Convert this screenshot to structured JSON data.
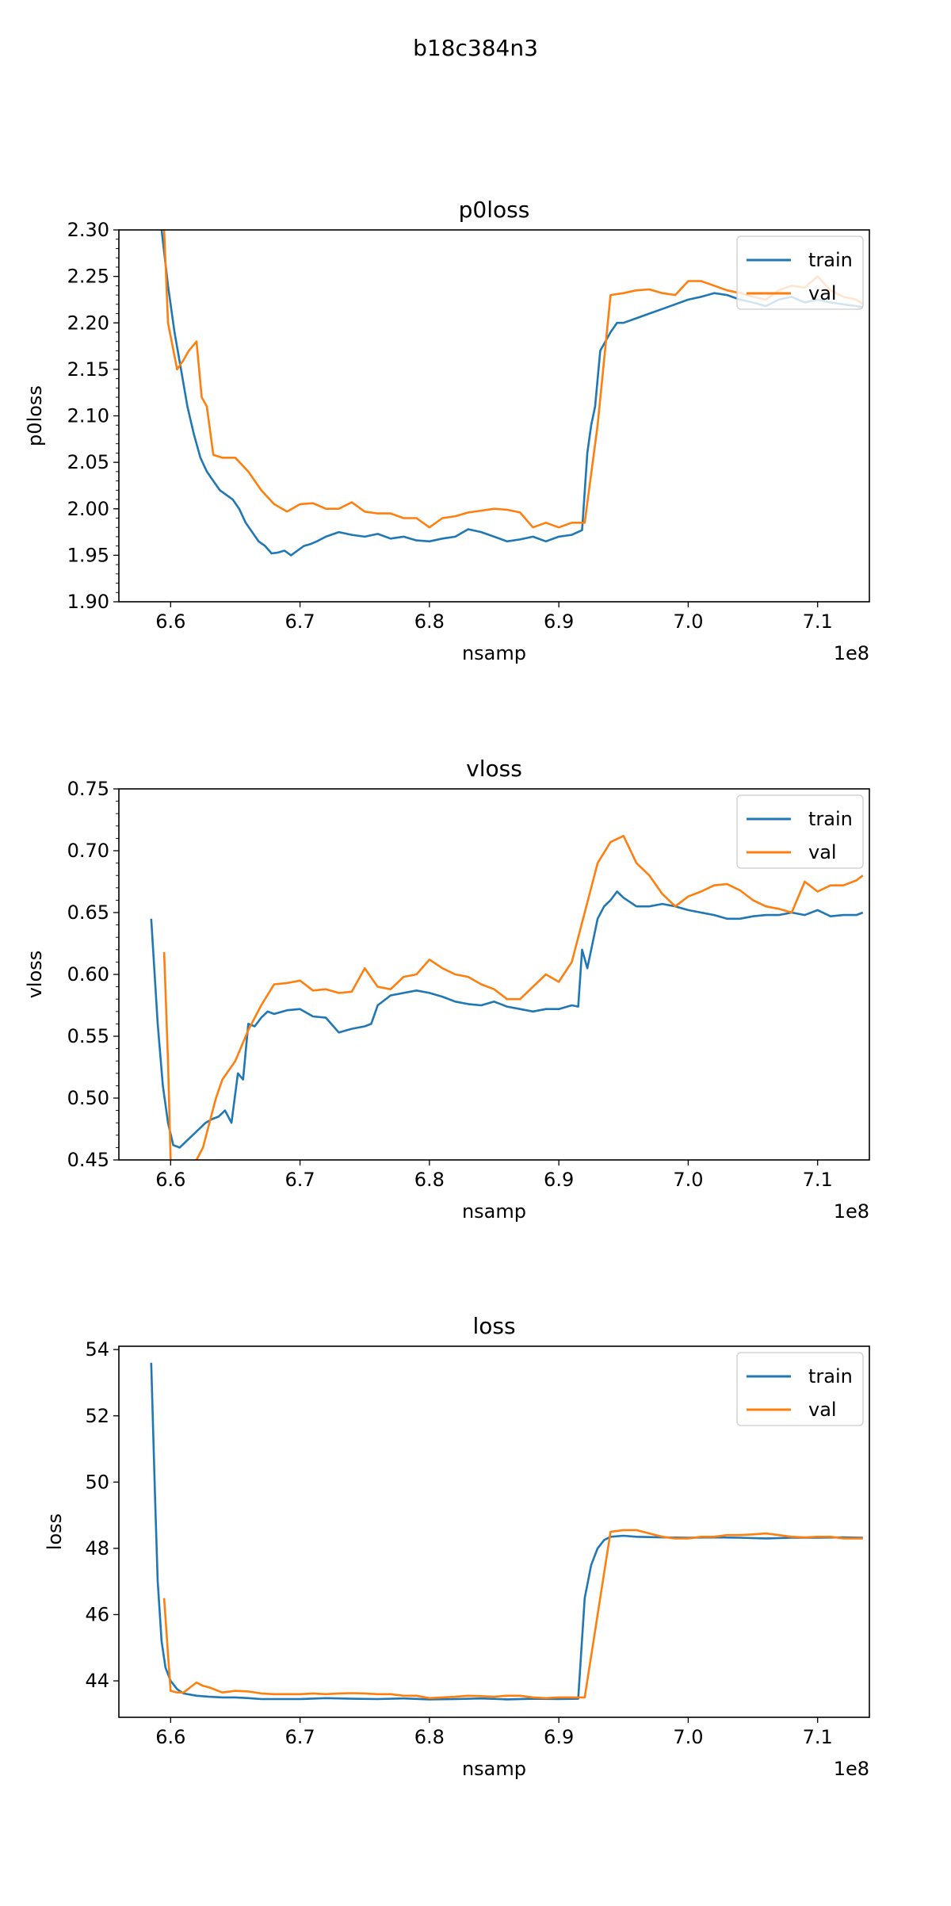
{
  "figure": {
    "title": "b18c384n3"
  },
  "colors": {
    "train": "#1f77b4",
    "val": "#ff7f0e",
    "axis": "#000000"
  },
  "chart_data": [
    {
      "type": "line",
      "title": "p0loss",
      "xlabel": "nsamp",
      "ylabel": "p0loss",
      "x_offset_label": "1e8",
      "xlim": [
        6.56,
        7.14
      ],
      "ylim": [
        1.9,
        2.3
      ],
      "xticks": [
        6.6,
        6.7,
        6.8,
        6.9,
        7.0,
        7.1
      ],
      "xtick_labels": [
        "6.6",
        "6.7",
        "6.8",
        "6.9",
        "7.0",
        "7.1"
      ],
      "yticks": [
        1.9,
        1.95,
        2.0,
        2.05,
        2.1,
        2.15,
        2.2,
        2.25,
        2.3
      ],
      "ytick_labels": [
        "1.90",
        "1.95",
        "2.00",
        "2.05",
        "2.10",
        "2.15",
        "2.20",
        "2.25",
        "2.30"
      ],
      "legend_position": "upper right",
      "series": [
        {
          "name": "train",
          "x": [
            6.593,
            6.598,
            6.603,
            6.608,
            6.613,
            6.618,
            6.623,
            6.628,
            6.633,
            6.638,
            6.643,
            6.648,
            6.653,
            6.658,
            6.663,
            6.668,
            6.673,
            6.678,
            6.683,
            6.688,
            6.693,
            6.698,
            6.703,
            6.708,
            6.713,
            6.72,
            6.73,
            6.74,
            6.75,
            6.76,
            6.77,
            6.78,
            6.79,
            6.8,
            6.81,
            6.82,
            6.83,
            6.84,
            6.85,
            6.86,
            6.87,
            6.88,
            6.89,
            6.9,
            6.91,
            6.918,
            6.922,
            6.925,
            6.928,
            6.932,
            6.936,
            6.94,
            6.945,
            6.95,
            6.96,
            6.97,
            6.98,
            6.99,
            7.0,
            7.01,
            7.02,
            7.03,
            7.04,
            7.05,
            7.06,
            7.07,
            7.08,
            7.09,
            7.1,
            7.11,
            7.12,
            7.13,
            7.135
          ],
          "y": [
            2.3,
            2.24,
            2.19,
            2.15,
            2.11,
            2.08,
            2.055,
            2.04,
            2.03,
            2.02,
            2.015,
            2.01,
            2.0,
            1.985,
            1.975,
            1.965,
            1.96,
            1.952,
            1.953,
            1.955,
            1.95,
            1.955,
            1.96,
            1.962,
            1.965,
            1.97,
            1.975,
            1.972,
            1.97,
            1.973,
            1.968,
            1.97,
            1.966,
            1.965,
            1.968,
            1.97,
            1.978,
            1.975,
            1.97,
            1.965,
            1.967,
            1.97,
            1.965,
            1.97,
            1.972,
            1.977,
            2.06,
            2.09,
            2.11,
            2.17,
            2.18,
            2.19,
            2.2,
            2.2,
            2.205,
            2.21,
            2.215,
            2.22,
            2.225,
            2.228,
            2.232,
            2.23,
            2.225,
            2.222,
            2.218,
            2.225,
            2.228,
            2.222,
            2.225,
            2.222,
            2.22,
            2.218,
            2.217
          ]
        },
        {
          "name": "val",
          "x": [
            6.595,
            6.598,
            6.605,
            6.61,
            6.614,
            6.62,
            6.624,
            6.628,
            6.633,
            6.64,
            6.65,
            6.66,
            6.67,
            6.68,
            6.69,
            6.7,
            6.71,
            6.72,
            6.73,
            6.74,
            6.75,
            6.76,
            6.77,
            6.78,
            6.79,
            6.8,
            6.81,
            6.82,
            6.83,
            6.84,
            6.85,
            6.86,
            6.87,
            6.88,
            6.89,
            6.9,
            6.91,
            6.92,
            6.93,
            6.94,
            6.95,
            6.96,
            6.97,
            6.98,
            6.99,
            7.0,
            7.01,
            7.02,
            7.03,
            7.04,
            7.05,
            7.06,
            7.07,
            7.08,
            7.09,
            7.1,
            7.11,
            7.12,
            7.13,
            7.135
          ],
          "y": [
            2.3,
            2.2,
            2.15,
            2.16,
            2.17,
            2.18,
            2.12,
            2.11,
            2.058,
            2.055,
            2.055,
            2.04,
            2.02,
            2.005,
            1.997,
            2.005,
            2.006,
            2.0,
            2.0,
            2.007,
            1.997,
            1.995,
            1.995,
            1.99,
            1.99,
            1.98,
            1.99,
            1.992,
            1.996,
            1.998,
            2.0,
            1.999,
            1.996,
            1.98,
            1.985,
            1.98,
            1.985,
            1.985,
            2.09,
            2.23,
            2.232,
            2.235,
            2.236,
            2.232,
            2.23,
            2.245,
            2.245,
            2.24,
            2.235,
            2.232,
            2.228,
            2.225,
            2.235,
            2.24,
            2.238,
            2.25,
            2.235,
            2.228,
            2.225,
            2.22
          ]
        }
      ]
    },
    {
      "type": "line",
      "title": "vloss",
      "xlabel": "nsamp",
      "ylabel": "vloss",
      "x_offset_label": "1e8",
      "xlim": [
        6.56,
        7.14
      ],
      "ylim": [
        0.45,
        0.75
      ],
      "xticks": [
        6.6,
        6.7,
        6.8,
        6.9,
        7.0,
        7.1
      ],
      "xtick_labels": [
        "6.6",
        "6.7",
        "6.8",
        "6.9",
        "7.0",
        "7.1"
      ],
      "yticks": [
        0.45,
        0.5,
        0.55,
        0.6,
        0.65,
        0.7,
        0.75
      ],
      "ytick_labels": [
        "0.45",
        "0.50",
        "0.55",
        "0.60",
        "0.65",
        "0.70",
        "0.75"
      ],
      "legend_position": "upper right",
      "series": [
        {
          "name": "train",
          "x": [
            6.585,
            6.59,
            6.594,
            6.598,
            6.602,
            6.607,
            6.612,
            6.617,
            6.622,
            6.627,
            6.632,
            6.637,
            6.642,
            6.647,
            6.652,
            6.656,
            6.66,
            6.665,
            6.67,
            6.675,
            6.68,
            6.69,
            6.7,
            6.71,
            6.72,
            6.73,
            6.74,
            6.75,
            6.755,
            6.76,
            6.77,
            6.78,
            6.79,
            6.8,
            6.81,
            6.82,
            6.83,
            6.84,
            6.85,
            6.86,
            6.87,
            6.88,
            6.89,
            6.9,
            6.91,
            6.915,
            6.918,
            6.922,
            6.925,
            6.93,
            6.935,
            6.94,
            6.945,
            6.95,
            6.96,
            6.97,
            6.98,
            6.99,
            7.0,
            7.01,
            7.02,
            7.03,
            7.04,
            7.05,
            7.06,
            7.07,
            7.08,
            7.09,
            7.1,
            7.11,
            7.12,
            7.13,
            7.135
          ],
          "y": [
            0.645,
            0.56,
            0.51,
            0.48,
            0.462,
            0.46,
            0.465,
            0.47,
            0.475,
            0.48,
            0.483,
            0.485,
            0.49,
            0.48,
            0.52,
            0.515,
            0.56,
            0.558,
            0.565,
            0.57,
            0.568,
            0.571,
            0.572,
            0.566,
            0.565,
            0.553,
            0.556,
            0.558,
            0.56,
            0.575,
            0.583,
            0.585,
            0.587,
            0.585,
            0.582,
            0.578,
            0.576,
            0.575,
            0.578,
            0.574,
            0.572,
            0.57,
            0.572,
            0.572,
            0.575,
            0.574,
            0.62,
            0.605,
            0.62,
            0.645,
            0.655,
            0.66,
            0.667,
            0.662,
            0.655,
            0.655,
            0.657,
            0.655,
            0.652,
            0.65,
            0.648,
            0.645,
            0.645,
            0.647,
            0.648,
            0.648,
            0.65,
            0.648,
            0.652,
            0.647,
            0.648,
            0.648,
            0.65
          ]
        },
        {
          "name": "val",
          "x": [
            6.595,
            6.598,
            6.6,
            6.605,
            6.61,
            6.615,
            6.62,
            6.625,
            6.63,
            6.635,
            6.64,
            6.65,
            6.66,
            6.67,
            6.68,
            6.69,
            6.7,
            6.71,
            6.72,
            6.73,
            6.74,
            6.75,
            6.76,
            6.77,
            6.78,
            6.79,
            6.8,
            6.81,
            6.82,
            6.83,
            6.84,
            6.85,
            6.86,
            6.87,
            6.88,
            6.89,
            6.9,
            6.91,
            6.92,
            6.93,
            6.94,
            6.95,
            6.96,
            6.97,
            6.98,
            6.99,
            7.0,
            7.01,
            7.02,
            7.03,
            7.04,
            7.05,
            7.06,
            7.07,
            7.08,
            7.09,
            7.1,
            7.11,
            7.12,
            7.13,
            7.135
          ],
          "y": [
            0.618,
            0.53,
            0.45,
            0.43,
            0.44,
            0.445,
            0.45,
            0.46,
            0.48,
            0.5,
            0.515,
            0.53,
            0.555,
            0.575,
            0.592,
            0.593,
            0.595,
            0.587,
            0.588,
            0.585,
            0.586,
            0.605,
            0.59,
            0.588,
            0.598,
            0.6,
            0.612,
            0.605,
            0.6,
            0.598,
            0.592,
            0.588,
            0.58,
            0.58,
            0.59,
            0.6,
            0.594,
            0.61,
            0.65,
            0.69,
            0.707,
            0.712,
            0.69,
            0.68,
            0.665,
            0.655,
            0.663,
            0.667,
            0.672,
            0.673,
            0.668,
            0.66,
            0.655,
            0.653,
            0.65,
            0.675,
            0.667,
            0.672,
            0.672,
            0.676,
            0.68
          ]
        }
      ]
    },
    {
      "type": "line",
      "title": "loss",
      "xlabel": "nsamp",
      "ylabel": "loss",
      "x_offset_label": "1e8",
      "xlim": [
        6.56,
        7.14
      ],
      "ylim": [
        42.9,
        54.1
      ],
      "xticks": [
        6.6,
        6.7,
        6.8,
        6.9,
        7.0,
        7.1
      ],
      "xtick_labels": [
        "6.6",
        "6.7",
        "6.8",
        "6.9",
        "7.0",
        "7.1"
      ],
      "yticks": [
        44,
        46,
        48,
        50,
        52,
        54
      ],
      "ytick_labels": [
        "44",
        "46",
        "48",
        "50",
        "52",
        "54"
      ],
      "legend_position": "upper right",
      "series": [
        {
          "name": "train",
          "x": [
            6.585,
            6.588,
            6.59,
            6.593,
            6.596,
            6.6,
            6.605,
            6.61,
            6.62,
            6.63,
            6.64,
            6.65,
            6.66,
            6.67,
            6.68,
            6.7,
            6.72,
            6.74,
            6.76,
            6.78,
            6.8,
            6.82,
            6.84,
            6.86,
            6.88,
            6.9,
            6.915,
            6.92,
            6.925,
            6.93,
            6.935,
            6.94,
            6.95,
            6.96,
            6.98,
            7.0,
            7.02,
            7.04,
            7.06,
            7.08,
            7.1,
            7.12,
            7.135
          ],
          "y": [
            53.6,
            49.5,
            47.0,
            45.2,
            44.4,
            44.0,
            43.75,
            43.62,
            43.55,
            43.52,
            43.5,
            43.5,
            43.48,
            43.45,
            43.45,
            43.45,
            43.48,
            43.46,
            43.45,
            43.47,
            43.44,
            43.45,
            43.47,
            43.44,
            43.46,
            43.45,
            43.46,
            46.5,
            47.5,
            48.0,
            48.25,
            48.35,
            48.38,
            48.35,
            48.33,
            48.32,
            48.33,
            48.32,
            48.3,
            48.32,
            48.32,
            48.33,
            48.32
          ]
        },
        {
          "name": "val",
          "x": [
            6.595,
            6.598,
            6.6,
            6.605,
            6.61,
            6.615,
            6.62,
            6.625,
            6.63,
            6.64,
            6.65,
            6.66,
            6.67,
            6.68,
            6.69,
            6.7,
            6.71,
            6.72,
            6.73,
            6.74,
            6.75,
            6.76,
            6.77,
            6.78,
            6.79,
            6.8,
            6.81,
            6.82,
            6.83,
            6.84,
            6.85,
            6.86,
            6.87,
            6.88,
            6.89,
            6.9,
            6.91,
            6.92,
            6.93,
            6.94,
            6.95,
            6.96,
            6.97,
            6.98,
            6.99,
            7.0,
            7.01,
            7.02,
            7.03,
            7.04,
            7.05,
            7.06,
            7.07,
            7.08,
            7.09,
            7.1,
            7.11,
            7.12,
            7.13,
            7.135
          ],
          "y": [
            46.5,
            44.8,
            43.7,
            43.65,
            43.65,
            43.8,
            43.95,
            43.85,
            43.8,
            43.65,
            43.7,
            43.68,
            43.62,
            43.6,
            43.6,
            43.6,
            43.62,
            43.6,
            43.62,
            43.63,
            43.62,
            43.6,
            43.6,
            43.55,
            43.55,
            43.48,
            43.5,
            43.52,
            43.55,
            43.54,
            43.52,
            43.55,
            43.55,
            43.5,
            43.48,
            43.5,
            43.5,
            43.5,
            46.0,
            48.5,
            48.55,
            48.55,
            48.45,
            48.35,
            48.3,
            48.3,
            48.35,
            48.35,
            48.4,
            48.4,
            48.42,
            48.45,
            48.4,
            48.35,
            48.33,
            48.35,
            48.35,
            48.3,
            48.3,
            48.3
          ]
        }
      ]
    }
  ]
}
